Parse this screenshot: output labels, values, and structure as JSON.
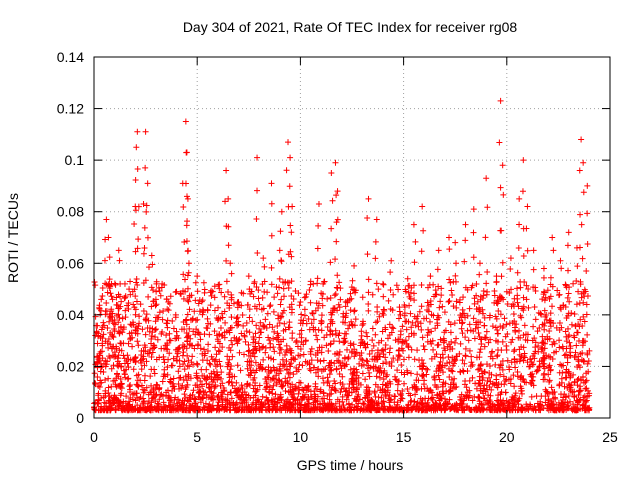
{
  "chart_data": {
    "type": "scatter",
    "title": "Day 304 of 2021, Rate Of TEC Index for receiver rg08",
    "xlabel": "GPS time / hours",
    "ylabel": "ROTI / TECUs",
    "xlim": [
      0,
      25
    ],
    "ylim": [
      0,
      0.14
    ],
    "xticks": [
      "0",
      "5",
      "10",
      "15",
      "20",
      "25"
    ],
    "yticks": [
      "0",
      "0.02",
      "0.04",
      "0.06",
      "0.08",
      "0.1",
      "0.12",
      "0.14"
    ],
    "grid": true,
    "marker": "plus",
    "color": "#ff0000",
    "series": [
      {
        "x": [
          0.2,
          0.35,
          0.45,
          0.6,
          0.7,
          0.85,
          0.9,
          1.0,
          1.2,
          1.3,
          1.5,
          1.7,
          1.9,
          2.0,
          2.05,
          2.1,
          2.4,
          2.5,
          2.6,
          2.8,
          3.0,
          3.3,
          3.6,
          4.0,
          4.3,
          4.45,
          4.5,
          4.55,
          4.6,
          5.0,
          5.5,
          6.0,
          6.4,
          6.5,
          6.6,
          7.0,
          7.5,
          7.9,
          8.2,
          8.6,
          9.0,
          9.1,
          9.4,
          9.5,
          9.6,
          10.0,
          10.5,
          10.9,
          11.1,
          11.5,
          11.7,
          11.8,
          12.2,
          12.6,
          13.0,
          13.3,
          13.7,
          14.0,
          14.4,
          14.8,
          15.2,
          15.5,
          15.9,
          16.3,
          16.7,
          17.2,
          17.5,
          18.0,
          18.4,
          18.7,
          19.0,
          19.5,
          19.7,
          19.8,
          20.2,
          20.6,
          20.8,
          21.0,
          21.3,
          21.8,
          22.2,
          22.6,
          23.0,
          23.4,
          23.6,
          23.7,
          23.9
        ],
        "y": [
          0.032,
          0.046,
          0.037,
          0.077,
          0.07,
          0.052,
          0.046,
          0.038,
          0.065,
          0.035,
          0.052,
          0.05,
          0.044,
          0.082,
          0.105,
          0.111,
          0.083,
          0.111,
          0.091,
          0.063,
          0.046,
          0.052,
          0.045,
          0.031,
          0.091,
          0.115,
          0.103,
          0.085,
          0.06,
          0.055,
          0.042,
          0.038,
          0.096,
          0.085,
          0.06,
          0.045,
          0.055,
          0.101,
          0.062,
          0.091,
          0.065,
          0.08,
          0.107,
          0.101,
          0.082,
          0.045,
          0.053,
          0.083,
          0.052,
          0.095,
          0.099,
          0.088,
          0.045,
          0.059,
          0.036,
          0.085,
          0.077,
          0.052,
          0.061,
          0.043,
          0.054,
          0.075,
          0.082,
          0.055,
          0.065,
          0.07,
          0.068,
          0.075,
          0.081,
          0.06,
          0.093,
          0.055,
          0.123,
          0.098,
          0.062,
          0.085,
          0.1,
          0.082,
          0.065,
          0.058,
          0.07,
          0.061,
          0.072,
          0.066,
          0.108,
          0.099,
          0.09
        ]
      }
    ]
  }
}
